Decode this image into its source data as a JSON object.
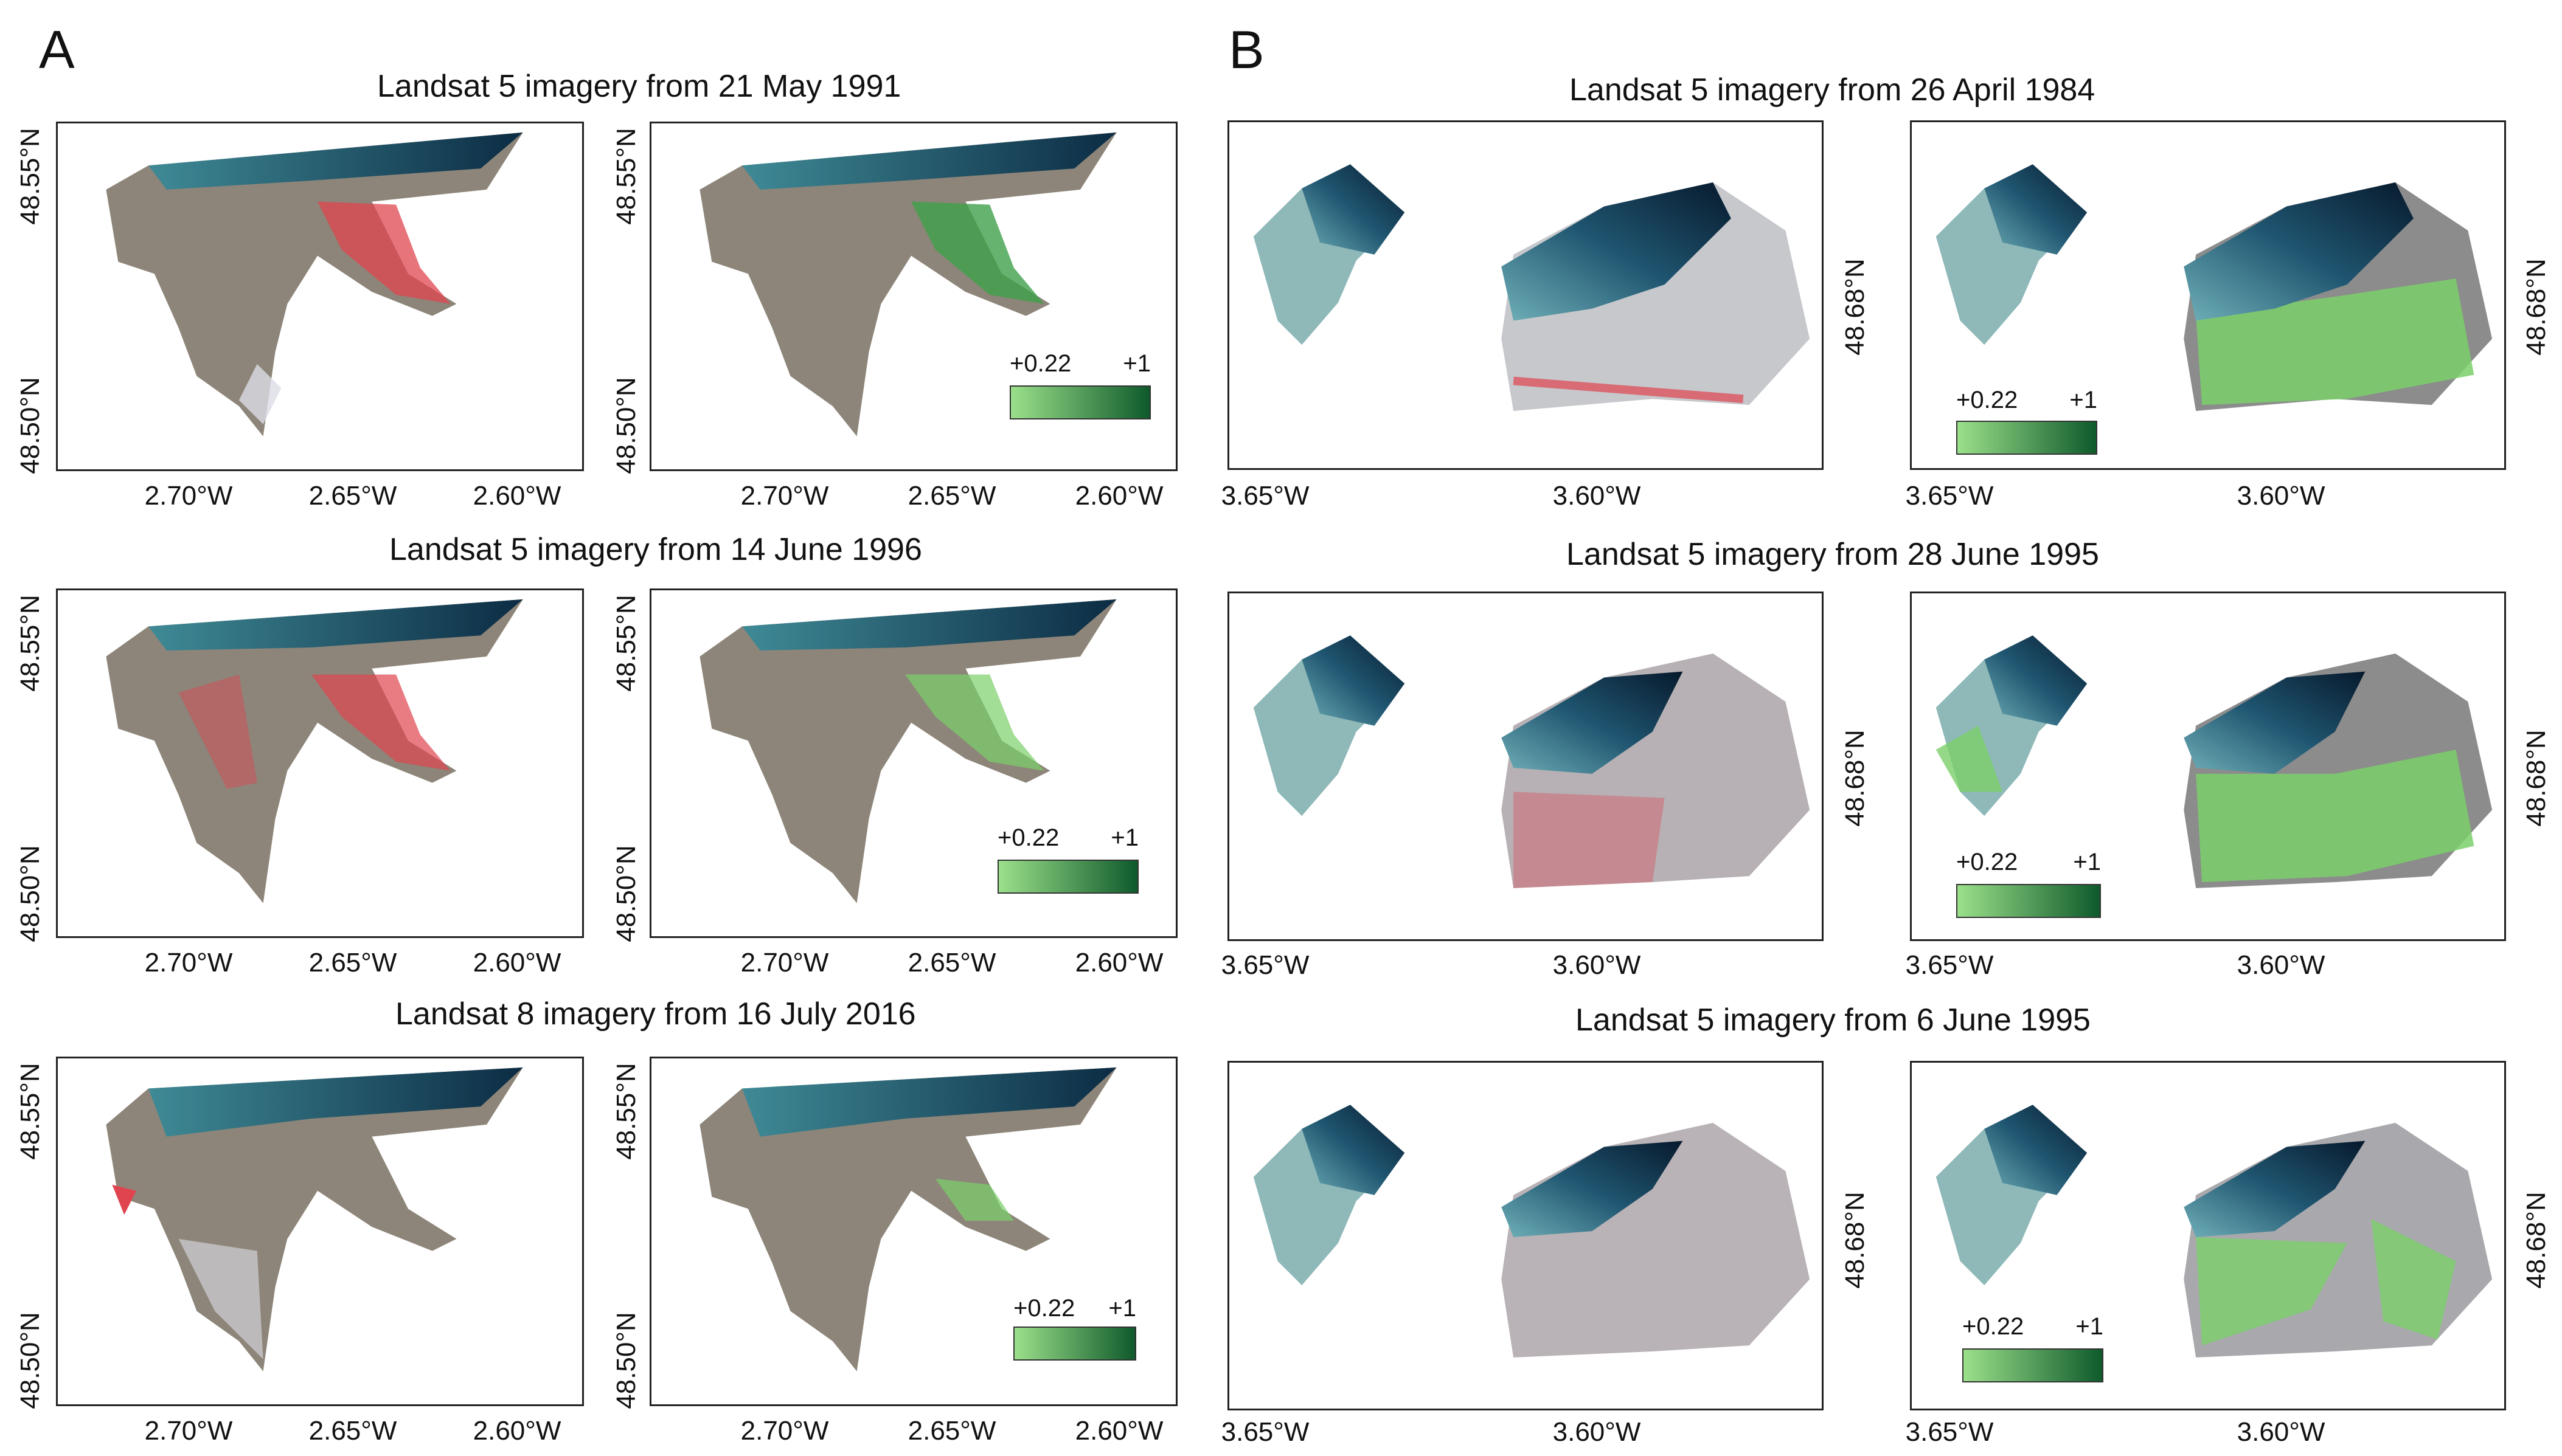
{
  "panels": {
    "a": {
      "letter": "A",
      "rows": [
        {
          "title": "Landsat 5 imagery from 21 May 1991",
          "legend": {
            "min": "+0.22",
            "max": "+1"
          }
        },
        {
          "title": "Landsat 5 imagery from 14 June 1996",
          "legend": {
            "min": "+0.22",
            "max": "+1"
          }
        },
        {
          "title": "Landsat 8 imagery from 16 July 2016",
          "legend": {
            "min": "+0.22",
            "max": "+1"
          }
        }
      ],
      "x_ticks": [
        "2.70°W",
        "2.65°W",
        "2.60°W"
      ],
      "y_ticks": [
        "48.55°N",
        "48.50°N"
      ]
    },
    "b": {
      "letter": "B",
      "rows": [
        {
          "title": "Landsat 5 imagery from 26 April 1984",
          "legend": {
            "min": "+0.22",
            "max": "+1"
          }
        },
        {
          "title": "Landsat 5 imagery from 28 June 1995",
          "legend": {
            "min": "+0.22",
            "max": "+1"
          }
        },
        {
          "title": "Landsat 5 imagery from 6 June 1995",
          "legend": {
            "min": "+0.22",
            "max": "+1"
          }
        }
      ],
      "x_ticks": [
        "3.65°W",
        "3.60°W"
      ],
      "y_ticks": [
        "48.68°N"
      ]
    }
  },
  "colors": {
    "water": "#123a52",
    "land": "#8d8579",
    "red_highlight": "#e0454f",
    "green_light": "#9be08a",
    "green_dark": "#0f5a2c"
  }
}
